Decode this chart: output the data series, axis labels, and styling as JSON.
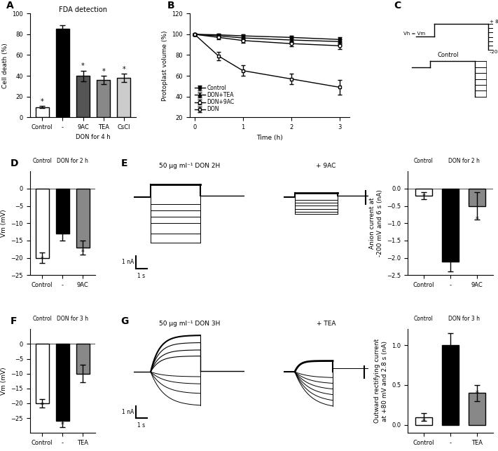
{
  "panel_A": {
    "title": "FDA detection",
    "ylabel": "Cell death (%)",
    "xlabel_groups": [
      "Control",
      "-",
      "9AC",
      "TEA",
      "CsCl"
    ],
    "xlabel_bottom": "DON for 4 h",
    "bar_values": [
      10,
      85,
      40,
      36,
      38
    ],
    "bar_errors": [
      1,
      4,
      5,
      4,
      4
    ],
    "bar_colors": [
      "white",
      "black",
      "#555555",
      "#888888",
      "#cccccc"
    ],
    "bar_edge": "black",
    "ylim": [
      0,
      100
    ],
    "yticks": [
      0,
      20,
      40,
      60,
      80,
      100
    ]
  },
  "panel_B": {
    "ylabel": "Protoplast volume (%)",
    "xlabel": "Time (h)",
    "ylim": [
      0,
      120
    ],
    "yticks": [
      0,
      20,
      40,
      60,
      80,
      100,
      120
    ],
    "xlim": [
      0,
      3
    ],
    "xticks": [
      0,
      1,
      2,
      3
    ]
  },
  "panel_D": {
    "ylabel": "Vm (mV)",
    "ylim": [
      -25,
      5
    ],
    "yticks": [
      -25,
      -20,
      -15,
      -10,
      -5,
      0
    ],
    "bar_values": [
      -20,
      -13,
      -17
    ],
    "bar_errors": [
      1.5,
      2,
      2
    ],
    "bar_colors": [
      "white",
      "black",
      "#888888"
    ],
    "bar_labels": [
      "Control",
      "-",
      "9AC"
    ]
  },
  "panel_E_title1": "50 μg ml⁻¹ DON 2H",
  "panel_E_title2": "+ 9AC",
  "panel_E_right": {
    "ylabel": "Anion current at\n-200 mV and 6 s (nA)",
    "ylim": [
      -2.5,
      0.5
    ],
    "yticks": [
      -2.5,
      -2.0,
      -1.5,
      -1.0,
      -0.5,
      0.0
    ],
    "bar_values": [
      -0.2,
      -2.1,
      -0.5
    ],
    "bar_errors": [
      0.1,
      0.3,
      0.4
    ],
    "bar_colors": [
      "white",
      "black",
      "#888888"
    ],
    "bar_labels": [
      "Control",
      "-",
      "9AC"
    ]
  },
  "panel_F": {
    "ylabel": "Vm (mV)",
    "ylim": [
      -30,
      5
    ],
    "yticks": [
      -25,
      -20,
      -15,
      -10,
      -5,
      0
    ],
    "bar_values": [
      -20,
      -26,
      -10
    ],
    "bar_errors": [
      1.5,
      2,
      3
    ],
    "bar_colors": [
      "white",
      "black",
      "#888888"
    ],
    "bar_labels": [
      "Control",
      "-",
      "TEA"
    ]
  },
  "panel_G_title1": "50 μg ml⁻¹ DON 3H",
  "panel_G_title2": "+ TEA",
  "panel_G_right": {
    "ylabel": "Outward rectifying current\nat +80 mV and 2.8 s (nA)",
    "ylim": [
      -0.1,
      1.2
    ],
    "yticks": [
      0.0,
      0.5,
      1.0
    ],
    "bar_values": [
      0.1,
      1.0,
      0.4
    ],
    "bar_errors": [
      0.05,
      0.15,
      0.1
    ],
    "bar_colors": [
      "white",
      "black",
      "#888888"
    ],
    "bar_labels": [
      "Control",
      "-",
      "TEA"
    ]
  },
  "fig_width": 7.11,
  "fig_height": 6.43,
  "dpi": 100
}
